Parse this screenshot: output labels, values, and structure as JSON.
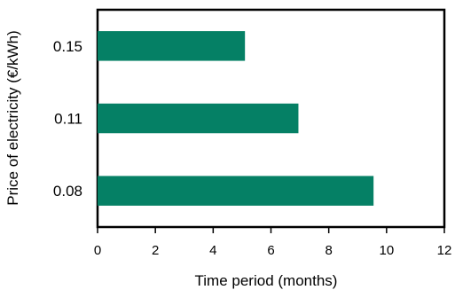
{
  "chart_data": {
    "type": "bar",
    "orientation": "horizontal",
    "categories": [
      "0.15",
      "0.11",
      "0.08"
    ],
    "values": [
      5.1,
      6.95,
      9.55
    ],
    "xlabel": "Time period (months)",
    "ylabel": "Price of electricity (€/kWh)",
    "xlim": [
      0,
      12
    ],
    "xticks": [
      "0",
      "2",
      "4",
      "6",
      "8",
      "10",
      "12"
    ],
    "grid": false,
    "legend": "none",
    "bar_color": "#058065"
  }
}
